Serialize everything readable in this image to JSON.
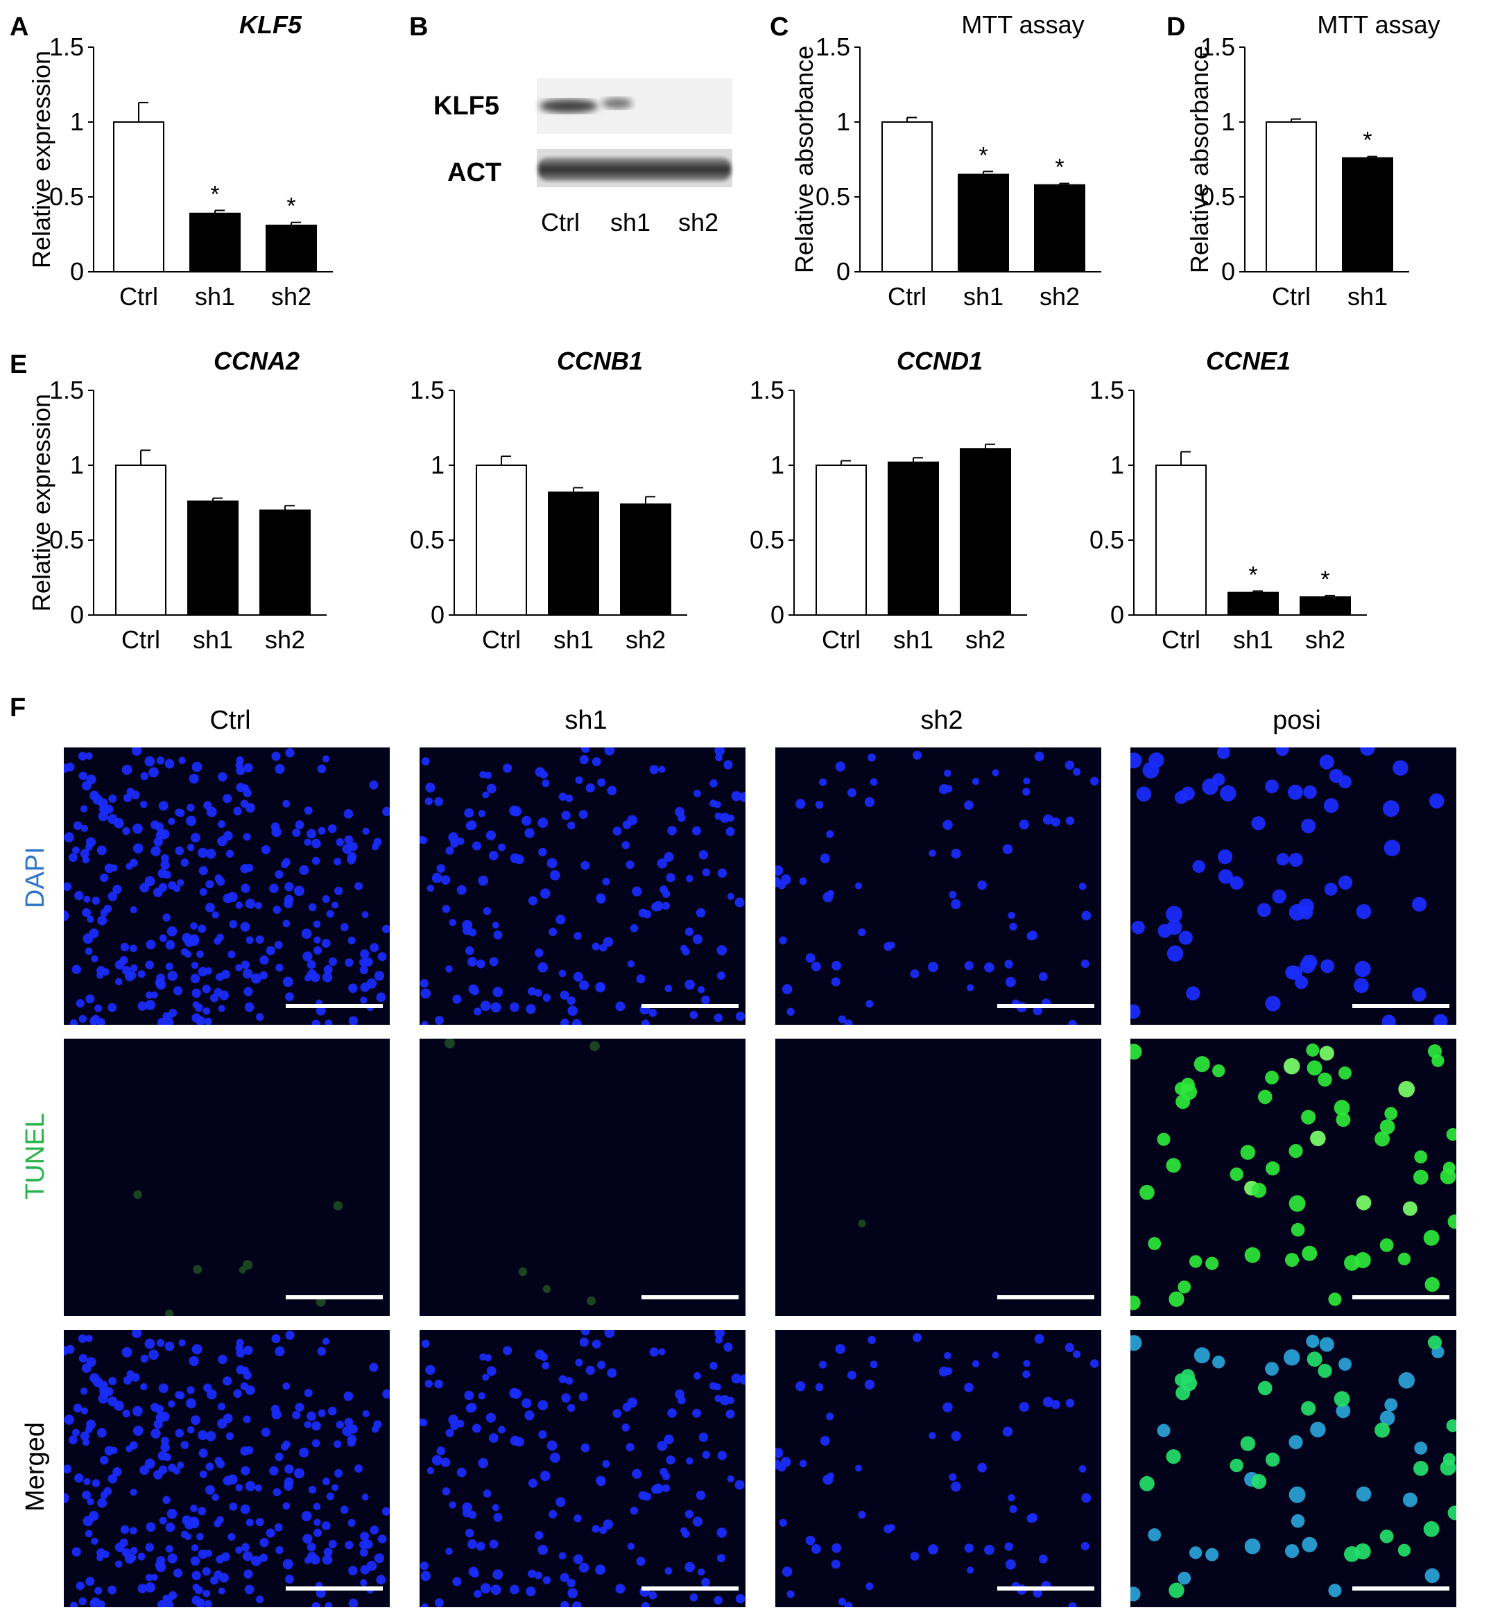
{
  "panels": {
    "A": "A",
    "B": "B",
    "C": "C",
    "D": "D",
    "E": "E",
    "F": "F"
  },
  "blot": {
    "bands": [
      "KLF5",
      "ACT"
    ],
    "lanes": [
      "Ctrl",
      "sh1",
      "sh2"
    ]
  },
  "chart_data": [
    {
      "id": "A",
      "type": "bar",
      "title": "KLF5",
      "title_italic": true,
      "ylabel": "Relative expression",
      "ylim": [
        0,
        1.5
      ],
      "yticks": [
        "0",
        "0.5",
        "1",
        "1.5"
      ],
      "categories": [
        "Ctrl",
        "sh1",
        "sh2"
      ],
      "values": [
        1.0,
        0.39,
        0.31
      ],
      "errors": [
        0.13,
        0.02,
        0.02
      ],
      "significance": [
        "",
        "*",
        "*"
      ],
      "bar_colors": [
        "#ffffff",
        "#000000",
        "#000000"
      ]
    },
    {
      "id": "C",
      "type": "bar",
      "title": "MTT assay",
      "title_italic": false,
      "ylabel": "Relative absorbance",
      "ylim": [
        0,
        1.5
      ],
      "yticks": [
        "0",
        "0.5",
        "1",
        "1.5"
      ],
      "categories": [
        "Ctrl",
        "sh1",
        "sh2"
      ],
      "values": [
        1.0,
        0.65,
        0.58
      ],
      "errors": [
        0.03,
        0.02,
        0.01
      ],
      "significance": [
        "",
        "*",
        "*"
      ],
      "bar_colors": [
        "#ffffff",
        "#000000",
        "#000000"
      ]
    },
    {
      "id": "D",
      "type": "bar",
      "title": "MTT assay",
      "title_italic": false,
      "ylabel": "Relative absorbance",
      "ylim": [
        0,
        1.5
      ],
      "yticks": [
        "0",
        "0.5",
        "1",
        "1.5"
      ],
      "categories": [
        "Ctrl",
        "sh1"
      ],
      "values": [
        1.0,
        0.76
      ],
      "errors": [
        0.02,
        0.01
      ],
      "significance": [
        "",
        "*"
      ],
      "bar_colors": [
        "#ffffff",
        "#000000"
      ]
    },
    {
      "id": "E1",
      "type": "bar",
      "title": "CCNA2",
      "title_italic": true,
      "ylabel": "Relative expression",
      "ylim": [
        0,
        1.5
      ],
      "yticks": [
        "0",
        "0.5",
        "1",
        "1.5"
      ],
      "categories": [
        "Ctrl",
        "sh1",
        "sh2"
      ],
      "values": [
        1.0,
        0.76,
        0.7
      ],
      "errors": [
        0.1,
        0.02,
        0.03
      ],
      "significance": [
        "",
        "",
        ""
      ],
      "bar_colors": [
        "#ffffff",
        "#000000",
        "#000000"
      ]
    },
    {
      "id": "E2",
      "type": "bar",
      "title": "CCNB1",
      "title_italic": true,
      "ylabel": "",
      "ylim": [
        0,
        1.5
      ],
      "yticks": [
        "0",
        "0.5",
        "1",
        "1.5"
      ],
      "categories": [
        "Ctrl",
        "sh1",
        "sh2"
      ],
      "values": [
        1.0,
        0.82,
        0.74
      ],
      "errors": [
        0.06,
        0.03,
        0.05
      ],
      "significance": [
        "",
        "",
        ""
      ],
      "bar_colors": [
        "#ffffff",
        "#000000",
        "#000000"
      ]
    },
    {
      "id": "E3",
      "type": "bar",
      "title": "CCND1",
      "title_italic": true,
      "ylabel": "",
      "ylim": [
        0,
        1.5
      ],
      "yticks": [
        "0",
        "0.5",
        "1",
        "1.5"
      ],
      "categories": [
        "Ctrl",
        "sh1",
        "sh2"
      ],
      "values": [
        1.0,
        1.02,
        1.11
      ],
      "errors": [
        0.03,
        0.03,
        0.03
      ],
      "significance": [
        "",
        "",
        ""
      ],
      "bar_colors": [
        "#ffffff",
        "#000000",
        "#000000"
      ]
    },
    {
      "id": "E4",
      "type": "bar",
      "title": "CCNE1",
      "title_italic": true,
      "ylabel": "",
      "ylim": [
        0,
        1.5
      ],
      "yticks": [
        "0",
        "0.5",
        "1",
        "1.5"
      ],
      "categories": [
        "Ctrl",
        "sh1",
        "sh2"
      ],
      "values": [
        1.0,
        0.15,
        0.12
      ],
      "errors": [
        0.09,
        0.01,
        0.01
      ],
      "significance": [
        "",
        "*",
        "*"
      ],
      "bar_colors": [
        "#ffffff",
        "#000000",
        "#000000"
      ]
    }
  ],
  "micrographs": {
    "columns": [
      "Ctrl",
      "sh1",
      "sh2",
      "posi"
    ],
    "rows": [
      {
        "label": "DAPI",
        "color": "#2e75c9"
      },
      {
        "label": "TUNEL",
        "color": "#27b24a"
      },
      {
        "label": "Merged",
        "color": "#000000"
      }
    ]
  }
}
